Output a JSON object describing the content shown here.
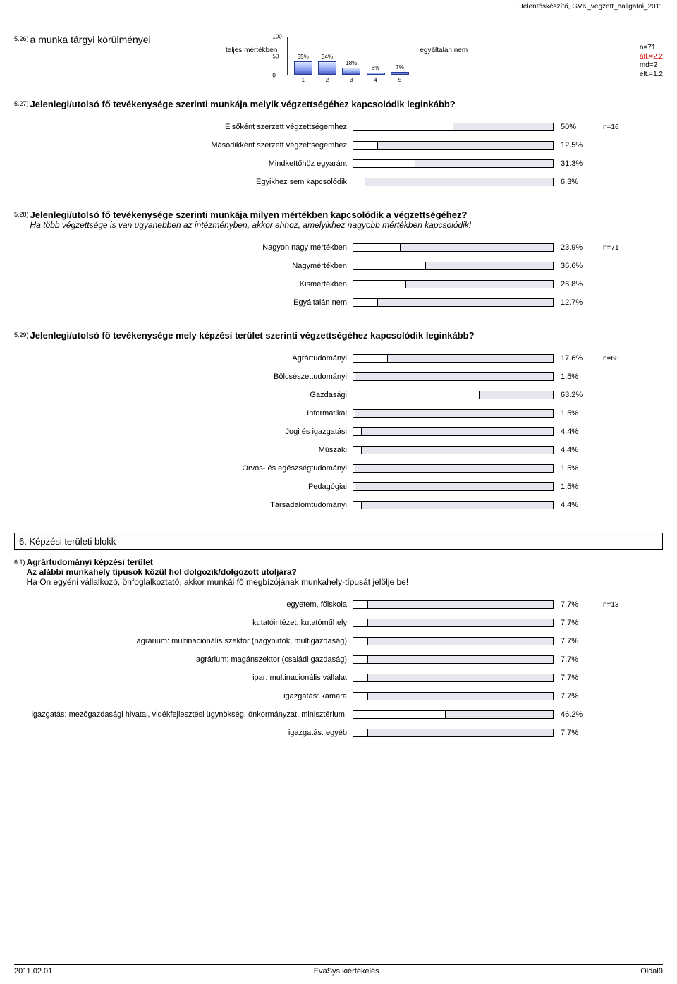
{
  "header": {
    "title": "Jelentéskészítő, GVK_végzett_hallgatoi_2011"
  },
  "q526": {
    "num": "5.26)",
    "title": "a munka tárgyi körülményei",
    "left_label": "teljes mértékben",
    "right_label": "egyáltalán nem",
    "stats_n": "n=71",
    "stats_atl": "átl.=2.2",
    "stats_md": "md=2",
    "stats_elt": "elt.=1.2",
    "chart": {
      "ymax": 100,
      "yticks": [
        0,
        50,
        100
      ],
      "x": [
        "1",
        "2",
        "3",
        "4",
        "5"
      ],
      "pct": [
        35,
        34,
        18,
        6,
        7
      ],
      "labels": [
        "35%",
        "34%",
        "18%",
        "6%",
        "7%"
      ]
    }
  },
  "q527": {
    "num": "5.27)",
    "title": "Jelenlegi/utolsó fő tevékenysége szerinti munkája melyik végzettségéhez kapcsolódik leginkább?",
    "n": "n=16",
    "rows": [
      {
        "label": "Elsőként szerzett végzettségemhez",
        "pct": 50,
        "txt": "50%"
      },
      {
        "label": "Másodikként szerzett végzettségemhez",
        "pct": 12.5,
        "txt": "12.5%"
      },
      {
        "label": "Mindkettőhöz egyaránt",
        "pct": 31.3,
        "txt": "31.3%"
      },
      {
        "label": "Egyikhez sem kapcsolódik",
        "pct": 6.3,
        "txt": "6.3%"
      }
    ]
  },
  "q528": {
    "num": "5.28)",
    "title": "Jelenlegi/utolsó fő tevékenysége szerinti munkája milyen mértékben kapcsolódik a végzettségéhez?",
    "sub": "Ha több végzettsége is van ugyanebben az intézményben, akkor ahhoz, amelyikhez nagyobb mértékben kapcsolódik!",
    "n": "n=71",
    "rows": [
      {
        "label": "Nagyon nagy mértékben",
        "pct": 23.9,
        "txt": "23.9%"
      },
      {
        "label": "Nagymértékben",
        "pct": 36.6,
        "txt": "36.6%"
      },
      {
        "label": "Kismértékben",
        "pct": 26.8,
        "txt": "26.8%"
      },
      {
        "label": "Egyáltalán nem",
        "pct": 12.7,
        "txt": "12.7%"
      }
    ]
  },
  "q529": {
    "num": "5.29)",
    "title": "Jelenlegi/utolsó fő tevékenysége mely képzési terület szerinti végzettségéhez kapcsolódik leginkább?",
    "n": "n=68",
    "rows": [
      {
        "label": "Agrártudományi",
        "pct": 17.6,
        "txt": "17.6%"
      },
      {
        "label": "Bölcsészettudományi",
        "pct": 1.5,
        "txt": "1.5%"
      },
      {
        "label": "Gazdasági",
        "pct": 63.2,
        "txt": "63.2%"
      },
      {
        "label": "Informatikai",
        "pct": 1.5,
        "txt": "1.5%"
      },
      {
        "label": "Jogi és igazgatási",
        "pct": 4.4,
        "txt": "4.4%"
      },
      {
        "label": "Műszaki",
        "pct": 4.4,
        "txt": "4.4%"
      },
      {
        "label": "Orvos- és egészségtudományi",
        "pct": 1.5,
        "txt": "1.5%"
      },
      {
        "label": "Pedagógiai",
        "pct": 1.5,
        "txt": "1.5%"
      },
      {
        "label": "Társadalomtudományi",
        "pct": 4.4,
        "txt": "4.4%"
      }
    ]
  },
  "section6": {
    "title": "6. Képzési területi blokk"
  },
  "q61": {
    "num": "6.1)",
    "title": "Agrártudományi képzési terület",
    "sub1": "Az alábbi munkahely típusok közül hol dolgozik/dolgozott utoljára?",
    "sub2": "Ha Ön egyéni vállalkozó, önfoglalkoztató, akkor munkái fő megbízójának munkahely-típusát jelölje be!",
    "n": "n=13",
    "rows": [
      {
        "label": "egyetem, főiskola",
        "pct": 7.7,
        "txt": "7.7%"
      },
      {
        "label": "kutatóintézet, kutatóműhely",
        "pct": 7.7,
        "txt": "7.7%"
      },
      {
        "label": "agrárium:  multinacionális szektor (nagybirtok, multigazdaság)",
        "pct": 7.7,
        "txt": "7.7%"
      },
      {
        "label": "agrárium: magánszektor (családi gazdaság)",
        "pct": 7.7,
        "txt": "7.7%"
      },
      {
        "label": "ipar:  multinacionális vállalat",
        "pct": 7.7,
        "txt": "7.7%"
      },
      {
        "label": "igazgatás:  kamara",
        "pct": 7.7,
        "txt": "7.7%"
      },
      {
        "label": "igazgatás:  mezőgazdasági hivatal, vidékfejlesztési ügynökség, önkormányzat, minisztérium,",
        "pct": 46.2,
        "txt": "46.2%"
      },
      {
        "label": "igazgatás:  egyéb",
        "pct": 7.7,
        "txt": "7.7%"
      }
    ]
  },
  "footer": {
    "left": "2011.02.01",
    "center": "EvaSys kiértékelés",
    "right": "Oldal9"
  }
}
